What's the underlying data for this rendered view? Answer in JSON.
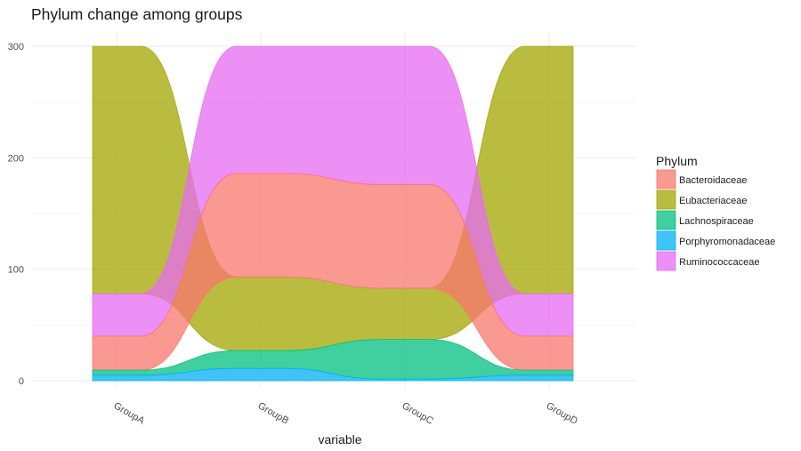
{
  "chart_data": {
    "type": "alluvial",
    "title": "Phylum change among groups",
    "xlabel": "variable",
    "ylabel": "",
    "ylim": [
      0,
      300
    ],
    "yticks": [
      0,
      100,
      200,
      300
    ],
    "categories": [
      "GroupA",
      "GroupB",
      "GroupC",
      "GroupD"
    ],
    "legend": {
      "title": "Phylum",
      "position": "right",
      "entries": [
        {
          "name": "Bacteroidaceae",
          "color": "#F8766D"
        },
        {
          "name": "Eubacteriaceae",
          "color": "#A3A500"
        },
        {
          "name": "Lachnospiraceae",
          "color": "#00BF7D"
        },
        {
          "name": "Porphyromonadaceae",
          "color": "#00B0F6"
        },
        {
          "name": "Ruminococcaceae",
          "color": "#E76BF3"
        }
      ]
    },
    "series": [
      {
        "name": "Bacteroidaceae",
        "values": [
          30.5,
          93,
          93,
          30.5
        ]
      },
      {
        "name": "Eubacteriaceae",
        "values": [
          222,
          66,
          46,
          222
        ]
      },
      {
        "name": "Lachnospiraceae",
        "values": [
          4.5,
          16,
          35.5,
          4.5
        ]
      },
      {
        "name": "Porphyromonadaceae",
        "values": [
          5,
          11,
          1.5,
          5
        ]
      },
      {
        "name": "Ruminococcaceae",
        "values": [
          38,
          114,
          124,
          38
        ]
      }
    ],
    "stack_order_bottom_to_top": [
      [
        "Porphyromonadaceae",
        "Lachnospiraceae",
        "Bacteroidaceae",
        "Ruminococcaceae",
        "Eubacteriaceae"
      ],
      [
        "Porphyromonadaceae",
        "Lachnospiraceae",
        "Eubacteriaceae",
        "Bacteroidaceae",
        "Ruminococcaceae"
      ],
      [
        "Porphyromonadaceae",
        "Lachnospiraceae",
        "Eubacteriaceae",
        "Bacteroidaceae",
        "Ruminococcaceae"
      ],
      [
        "Porphyromonadaceae",
        "Lachnospiraceae",
        "Bacteroidaceae",
        "Ruminococcaceae",
        "Eubacteriaceae"
      ]
    ],
    "grid": true,
    "fill_alpha": 0.75
  }
}
